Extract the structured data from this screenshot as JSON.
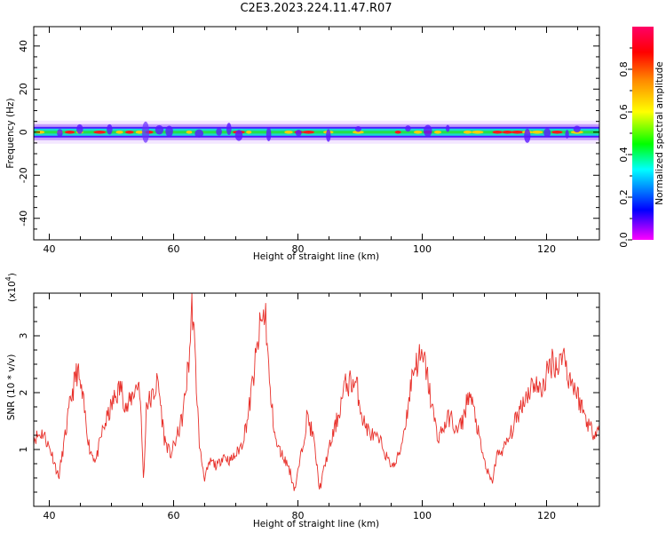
{
  "title": "C2E3.2023.224.11.47.R07",
  "chart_data": [
    {
      "type": "heatmap",
      "title": "C2E3.2023.224.11.47.R07",
      "xlabel": "Height of straight line (km)",
      "ylabel": "Frequency (Hz)",
      "xlim": [
        37.5,
        128.5
      ],
      "ylim": [
        -50,
        49
      ],
      "xticks": [
        40,
        60,
        80,
        100,
        120
      ],
      "yticks": [
        40,
        20,
        0,
        -20,
        -40
      ],
      "band_center_hz": 0,
      "colorbar": {
        "label": "Normalized spectral amplitude",
        "range": [
          0.0,
          1.0
        ],
        "ticks": [
          0.0,
          0.2,
          0.4,
          0.6,
          0.8
        ],
        "colormap": [
          "#ff00ff",
          "#0000ff",
          "#00ffff",
          "#00ff00",
          "#ffff00",
          "#ff8800",
          "#ff0000",
          "#ff0066"
        ]
      }
    },
    {
      "type": "line",
      "xlabel": "Height of straight line (km)",
      "ylabel": "SNR (10 * v/v)",
      "yscale_label": "(x10",
      "yscale_exp": "4",
      "yscale_close": ")",
      "xlim": [
        37.5,
        128.5
      ],
      "ylim": [
        0.0,
        3.75
      ],
      "xticks": [
        40,
        60,
        80,
        100,
        120
      ],
      "yticks": [
        1,
        2,
        3
      ],
      "color": "#e8302a",
      "x": [
        37.5,
        39,
        40.5,
        41.5,
        42.5,
        43.5,
        44.5,
        45.5,
        46.5,
        47.5,
        48.5,
        49.5,
        50.5,
        51.5,
        52.5,
        53.5,
        54.5,
        55.2,
        55.6,
        56.5,
        57.5,
        58.5,
        59.5,
        60.5,
        61.5,
        62.5,
        63.0,
        63.5,
        64.2,
        65.0,
        66,
        67,
        68,
        69,
        70,
        71,
        72,
        73,
        74,
        74.8,
        75.5,
        76.5,
        77.5,
        78.5,
        79.5,
        80.5,
        81.5,
        82.5,
        83.5,
        84.5,
        85.5,
        86.5,
        87.5,
        88.5,
        89.5,
        90.5,
        91.5,
        92.5,
        93.5,
        94.5,
        95.5,
        96.5,
        97.5,
        98.5,
        99.5,
        100.5,
        101.5,
        102.5,
        103.5,
        104.5,
        105.5,
        106.5,
        107.5,
        108.5,
        109.5,
        110.5,
        111.2,
        112,
        113,
        114,
        115,
        116,
        117,
        118,
        119,
        120,
        121,
        122,
        122.5,
        123.5,
        124.5,
        125.5,
        126.5,
        127.5,
        128.5
      ],
      "y": [
        1.2,
        1.3,
        0.9,
        0.5,
        1.2,
        1.9,
        2.4,
        1.8,
        1.0,
        0.8,
        1.3,
        1.6,
        1.9,
        2.1,
        1.7,
        2.0,
        2.2,
        0.4,
        1.8,
        1.9,
        2.2,
        1.2,
        0.9,
        1.2,
        1.6,
        2.6,
        3.6,
        2.5,
        1.0,
        0.5,
        0.8,
        0.7,
        0.9,
        0.8,
        0.9,
        1.1,
        1.6,
        2.4,
        3.2,
        3.4,
        2.0,
        1.1,
        0.9,
        0.7,
        0.3,
        0.9,
        1.6,
        1.2,
        0.3,
        0.8,
        1.2,
        1.6,
        2.1,
        2.2,
        2.1,
        1.5,
        1.3,
        1.2,
        1.1,
        0.8,
        0.7,
        1.0,
        1.6,
        2.4,
        2.6,
        2.5,
        1.8,
        1.2,
        1.4,
        1.6,
        1.3,
        1.5,
        2.0,
        1.6,
        1.0,
        0.6,
        0.4,
        0.9,
        1.0,
        1.2,
        1.5,
        1.8,
        2.0,
        2.2,
        2.0,
        2.3,
        2.6,
        2.4,
        2.8,
        2.3,
        2.1,
        1.8,
        1.5,
        1.3,
        1.4
      ]
    }
  ]
}
